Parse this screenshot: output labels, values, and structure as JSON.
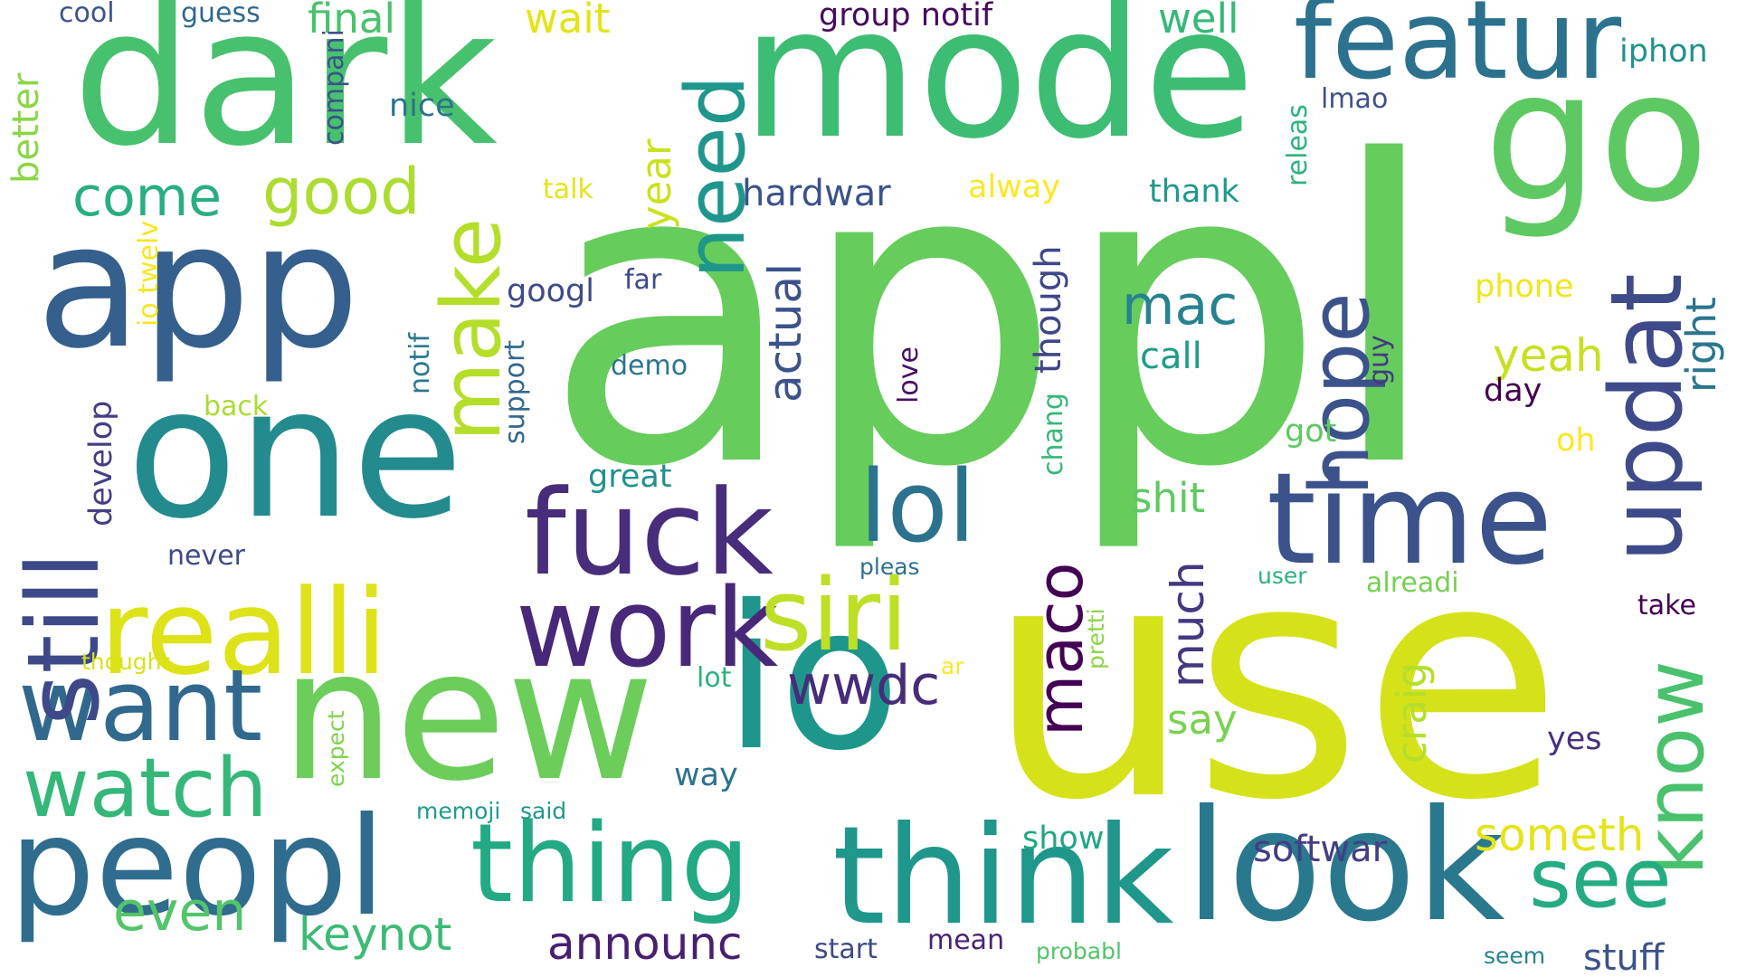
{
  "words": [
    {
      "text": "appl",
      "color": "#66cc5c"
    },
    {
      "text": "use",
      "color": "#d5e21a"
    },
    {
      "text": "dark",
      "color": "#47c16e"
    },
    {
      "text": "mode",
      "color": "#3dbc74"
    },
    {
      "text": "io",
      "color": "#1f968b"
    },
    {
      "text": "new",
      "color": "#6ccd5a"
    },
    {
      "text": "go",
      "color": "#5ec962"
    },
    {
      "text": "app",
      "color": "#355f8d"
    },
    {
      "text": "one",
      "color": "#238a8d"
    },
    {
      "text": "look",
      "color": "#2a788e"
    },
    {
      "text": "featur",
      "color": "#2c728e"
    },
    {
      "text": "peopl",
      "color": "#2f6c8e"
    },
    {
      "text": "think",
      "color": "#1f978b"
    },
    {
      "text": "thing",
      "color": "#23a983"
    },
    {
      "text": "time",
      "color": "#3b528b"
    },
    {
      "text": "updat",
      "color": "#3e4a89"
    },
    {
      "text": "fuck",
      "color": "#472d7b"
    },
    {
      "text": "realli",
      "color": "#dde318"
    },
    {
      "text": "work",
      "color": "#482878"
    },
    {
      "text": "want",
      "color": "#31688e"
    },
    {
      "text": "siri",
      "color": "#bddf26"
    },
    {
      "text": "watch",
      "color": "#35b779"
    },
    {
      "text": "still",
      "color": "#3e4989"
    },
    {
      "text": "lol",
      "color": "#2c728e"
    },
    {
      "text": "hope",
      "color": "#3b528b"
    },
    {
      "text": "need",
      "color": "#1f968b"
    },
    {
      "text": "know",
      "color": "#4ac16d"
    },
    {
      "text": "see",
      "color": "#25ab82"
    },
    {
      "text": "make",
      "color": "#b5de2b"
    },
    {
      "text": "maco",
      "color": "#440154"
    },
    {
      "text": "good",
      "color": "#addc30"
    },
    {
      "text": "come",
      "color": "#29af7f"
    },
    {
      "text": "mac",
      "color": "#26828e"
    },
    {
      "text": "even",
      "color": "#52c569"
    },
    {
      "text": "wwdc",
      "color": "#472c7a"
    },
    {
      "text": "much",
      "color": "#453781"
    },
    {
      "text": "actual",
      "color": "#3b528b"
    },
    {
      "text": "though",
      "color": "#3f4788"
    },
    {
      "text": "keynot",
      "color": "#3bbb75"
    },
    {
      "text": "someth",
      "color": "#e5e419"
    },
    {
      "text": "announc",
      "color": "#481f70"
    },
    {
      "text": "softwar",
      "color": "#433e85"
    },
    {
      "text": "shit",
      "color": "#5ec962"
    },
    {
      "text": "say",
      "color": "#7ad151"
    },
    {
      "text": "craig",
      "color": "#b5de2b"
    },
    {
      "text": "well",
      "color": "#37b878"
    },
    {
      "text": "yeah",
      "color": "#c8e020"
    },
    {
      "text": "right",
      "color": "#2a768e"
    },
    {
      "text": "call",
      "color": "#1e9c89"
    },
    {
      "text": "final",
      "color": "#4ac16d"
    },
    {
      "text": "wait",
      "color": "#e2e418"
    },
    {
      "text": "year",
      "color": "#cae11f"
    },
    {
      "text": "better",
      "color": "#8bd646"
    },
    {
      "text": "iphon",
      "color": "#21918c"
    },
    {
      "text": "hardwar",
      "color": "#3b528b"
    },
    {
      "text": "releas",
      "color": "#2db27d"
    },
    {
      "text": "group notif",
      "color": "#460a5d"
    },
    {
      "text": "phone",
      "color": "#f1e51d"
    },
    {
      "text": "great",
      "color": "#218f8d"
    },
    {
      "text": "stuff",
      "color": "#3b528b"
    },
    {
      "text": "develop",
      "color": "#433e85"
    },
    {
      "text": "googl",
      "color": "#3e4a89"
    },
    {
      "text": "show",
      "color": "#21a685"
    },
    {
      "text": "nice",
      "color": "#2c728e"
    },
    {
      "text": "thank",
      "color": "#1f988b"
    },
    {
      "text": "alway",
      "color": "#fde725"
    },
    {
      "text": "talk",
      "color": "#e5e419"
    },
    {
      "text": "lmao",
      "color": "#3b528b"
    },
    {
      "text": "day",
      "color": "#440154"
    },
    {
      "text": "yes",
      "color": "#46307e"
    },
    {
      "text": "take",
      "color": "#440154"
    },
    {
      "text": "alreadi",
      "color": "#75d054"
    },
    {
      "text": "love",
      "color": "#471063"
    },
    {
      "text": "got",
      "color": "#5ec962"
    },
    {
      "text": "oh",
      "color": "#fde725"
    },
    {
      "text": "back",
      "color": "#a8db34"
    },
    {
      "text": "never",
      "color": "#3e4989"
    },
    {
      "text": "cool",
      "color": "#3b528b"
    },
    {
      "text": "guess",
      "color": "#31688e"
    },
    {
      "text": "compani",
      "color": "#3b528b"
    },
    {
      "text": "far",
      "color": "#3e4989"
    },
    {
      "text": "notif",
      "color": "#2a788e"
    },
    {
      "text": "support",
      "color": "#31688e"
    },
    {
      "text": "io twelv",
      "color": "#f8e621"
    },
    {
      "text": "guy",
      "color": "#443983"
    },
    {
      "text": "chang",
      "color": "#37b878"
    },
    {
      "text": "demo",
      "color": "#2a768e"
    },
    {
      "text": "pleas",
      "color": "#2c728e"
    },
    {
      "text": "user",
      "color": "#2db27d"
    },
    {
      "text": "pretti",
      "color": "#8bd646"
    },
    {
      "text": "thought",
      "color": "#d8e219"
    },
    {
      "text": "lot",
      "color": "#2db27d"
    },
    {
      "text": "ar",
      "color": "#fde725"
    },
    {
      "text": "way",
      "color": "#2c738e"
    },
    {
      "text": "expect",
      "color": "#7fd34e"
    },
    {
      "text": "memoji",
      "color": "#1e9b8a"
    },
    {
      "text": "said",
      "color": "#1f988b"
    },
    {
      "text": "start",
      "color": "#3e4989"
    },
    {
      "text": "mean",
      "color": "#482475"
    },
    {
      "text": "probabl",
      "color": "#52c569"
    },
    {
      "text": "seem",
      "color": "#25838e"
    }
  ]
}
